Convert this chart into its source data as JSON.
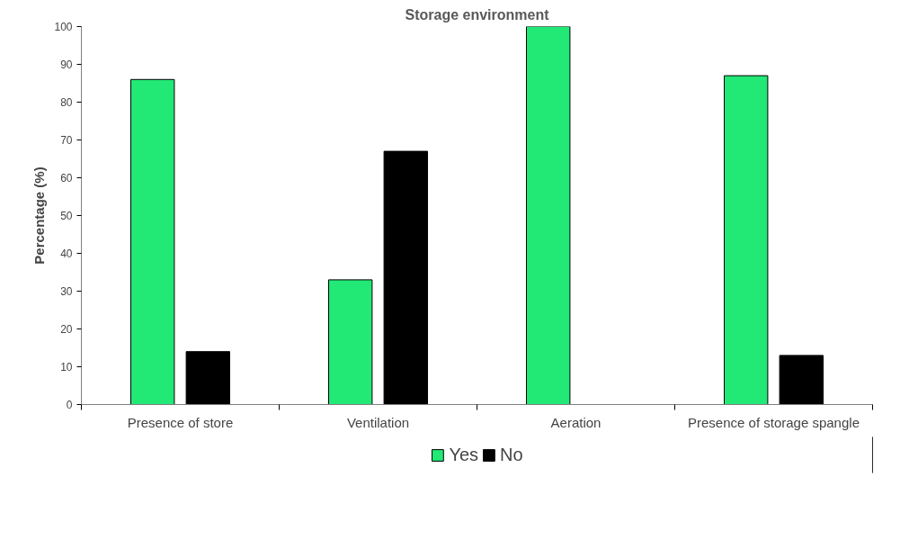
{
  "chart_data": {
    "type": "bar",
    "title": "Storage environment",
    "ylabel": "Percentage (%)",
    "categories": [
      "Presence of store",
      "Ventilation",
      "Aeration",
      "Presence of storage spangle"
    ],
    "series": [
      {
        "name": "Yes",
        "color": "#22e876",
        "values": [
          86,
          33,
          100,
          87
        ]
      },
      {
        "name": "No",
        "color": "#000000",
        "values": [
          14,
          67,
          0,
          13
        ]
      }
    ],
    "ylim": [
      0,
      100
    ],
    "yticks": [
      0,
      10,
      20,
      30,
      40,
      50,
      60,
      70,
      80,
      90,
      100
    ],
    "grid": false,
    "legend": "bottom"
  }
}
